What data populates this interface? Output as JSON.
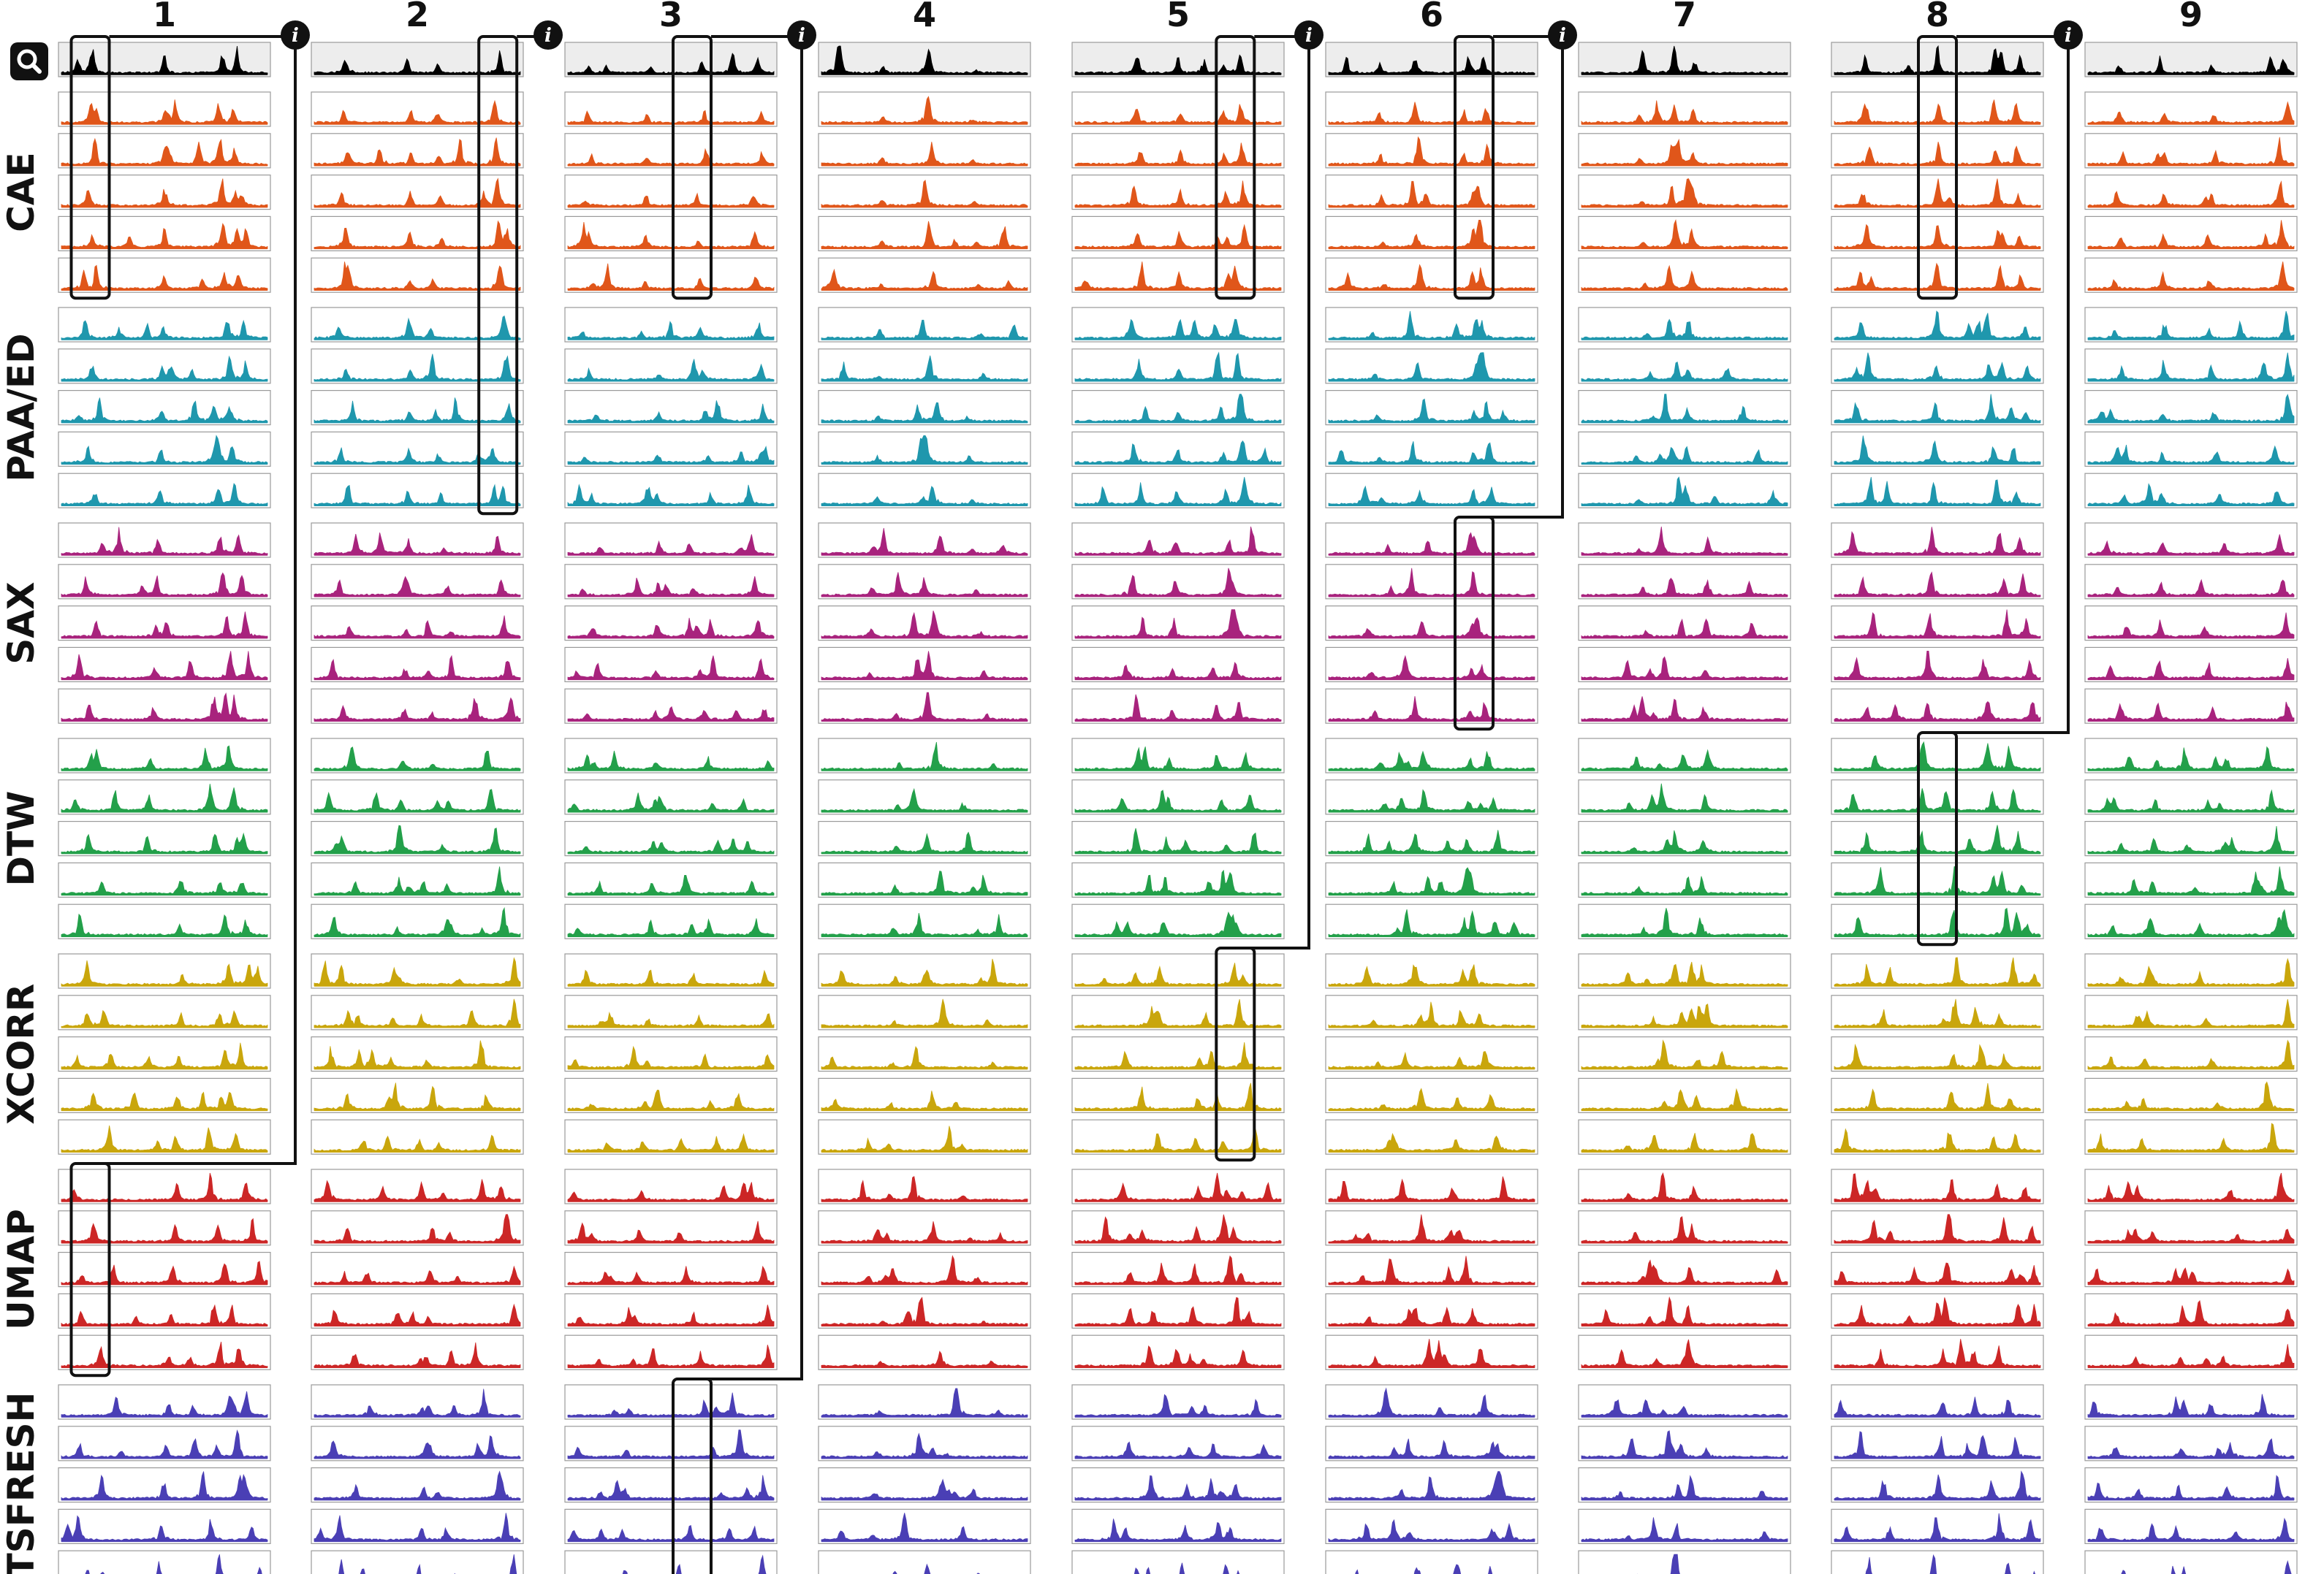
{
  "chart_data": {
    "type": "area",
    "title": "",
    "columns": [
      "1",
      "2",
      "3",
      "4",
      "5",
      "6",
      "7",
      "8",
      "9"
    ],
    "query": {
      "label": "",
      "color": "#000000",
      "background": "#ededed"
    },
    "search_icon": "search-magnifier-icon",
    "info_icon": "info-icon",
    "groups": [
      {
        "name": "CAE",
        "color": "#e0561a",
        "rows": 5
      },
      {
        "name": "PAA/ED",
        "color": "#1f97ad",
        "rows": 5
      },
      {
        "name": "SAX",
        "color": "#a8237d",
        "rows": 5
      },
      {
        "name": "DTW",
        "color": "#23a04a",
        "rows": 5
      },
      {
        "name": "XCORR",
        "color": "#c9a60c",
        "rows": 5
      },
      {
        "name": "UMAP",
        "color": "#cc2626",
        "rows": 5
      },
      {
        "name": "TSFRESH",
        "color": "#4a3fb5",
        "rows": 5
      }
    ],
    "peaks": [
      [
        [
          0.15,
          0.7
        ],
        [
          0.5,
          0.55
        ],
        [
          0.78,
          0.85
        ],
        [
          0.85,
          0.75
        ]
      ],
      [
        [
          0.15,
          0.6
        ],
        [
          0.45,
          0.45
        ],
        [
          0.6,
          0.35
        ],
        [
          0.9,
          0.9
        ]
      ],
      [
        [
          0.1,
          0.3
        ],
        [
          0.4,
          0.35
        ],
        [
          0.65,
          0.4
        ],
        [
          0.92,
          0.6
        ]
      ],
      [
        [
          0.52,
          0.95
        ],
        [
          0.3,
          0.25
        ],
        [
          0.75,
          0.2
        ]
      ],
      [
        [
          0.3,
          0.75
        ],
        [
          0.5,
          0.5
        ],
        [
          0.72,
          0.45
        ],
        [
          0.8,
          0.9
        ]
      ],
      [
        [
          0.42,
          0.85
        ],
        [
          0.68,
          0.5
        ],
        [
          0.75,
          0.7
        ],
        [
          0.25,
          0.3
        ]
      ],
      [
        [
          0.45,
          0.9
        ],
        [
          0.55,
          0.6
        ],
        [
          0.3,
          0.25
        ]
      ],
      [
        [
          0.15,
          0.8
        ],
        [
          0.5,
          0.95
        ],
        [
          0.78,
          0.85
        ],
        [
          0.9,
          0.6
        ]
      ],
      [
        [
          0.15,
          0.45
        ],
        [
          0.35,
          0.5
        ],
        [
          0.6,
          0.4
        ],
        [
          0.95,
          0.95
        ]
      ]
    ],
    "highlights": [
      {
        "column": 1,
        "x": 0.15,
        "top": {
          "group": "Query",
          "row": 1
        },
        "bottom": {
          "group": "CAE",
          "row": 5
        },
        "info": true
      },
      {
        "column": 1,
        "x": 0.15,
        "top": {
          "group": "UMAP",
          "row": 1
        },
        "bottom": {
          "group": "UMAP",
          "row": 5
        },
        "info": false
      },
      {
        "column": 2,
        "x": 0.88,
        "top": {
          "group": "Query",
          "row": 1
        },
        "bottom": {
          "group": "PAA/ED",
          "row": 5
        },
        "info": true
      },
      {
        "column": 3,
        "x": 0.6,
        "top": {
          "group": "Query",
          "row": 1
        },
        "bottom": {
          "group": "CAE",
          "row": 5
        },
        "info": true
      },
      {
        "column": 3,
        "x": 0.6,
        "top": {
          "group": "TSFRESH",
          "row": 1
        },
        "bottom": {
          "group": "TSFRESH",
          "row": 5
        },
        "info": false
      },
      {
        "column": 5,
        "x": 0.77,
        "top": {
          "group": "Query",
          "row": 1
        },
        "bottom": {
          "group": "CAE",
          "row": 5
        },
        "info": true
      },
      {
        "column": 5,
        "x": 0.77,
        "top": {
          "group": "XCORR",
          "row": 1
        },
        "bottom": {
          "group": "XCORR",
          "row": 5
        },
        "info": false
      },
      {
        "column": 6,
        "x": 0.7,
        "top": {
          "group": "Query",
          "row": 1
        },
        "bottom": {
          "group": "CAE",
          "row": 5
        },
        "info": true
      },
      {
        "column": 6,
        "x": 0.7,
        "top": {
          "group": "SAX",
          "row": 1
        },
        "bottom": {
          "group": "SAX",
          "row": 5
        },
        "info": false
      },
      {
        "column": 8,
        "x": 0.5,
        "top": {
          "group": "Query",
          "row": 1
        },
        "bottom": {
          "group": "CAE",
          "row": 5
        },
        "info": true
      },
      {
        "column": 8,
        "x": 0.5,
        "top": {
          "group": "DTW",
          "row": 1
        },
        "bottom": {
          "group": "DTW",
          "row": 5
        },
        "info": false
      }
    ]
  }
}
